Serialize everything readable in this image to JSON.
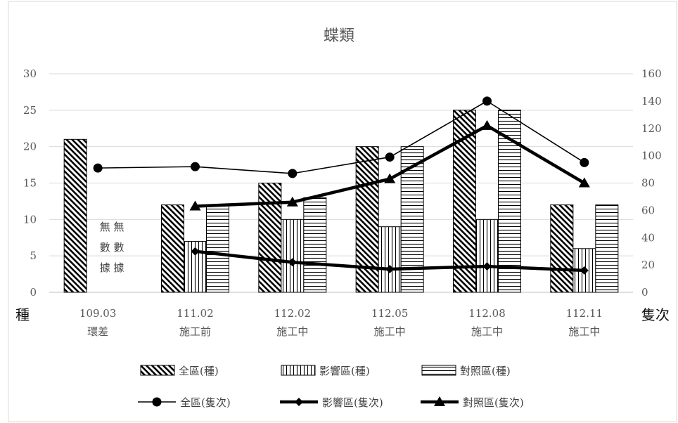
{
  "chart_data": {
    "type": "bar",
    "title": "蝶類",
    "ylabel_left": "種",
    "ylabel_right": "隻次",
    "categories": [
      [
        "109.03",
        "環差"
      ],
      [
        "111.02",
        "施工前"
      ],
      [
        "112.02",
        "施工中"
      ],
      [
        "112.05",
        "施工中"
      ],
      [
        "112.08",
        "施工中"
      ],
      [
        "112.11",
        "施工中"
      ]
    ],
    "yleft": {
      "min": 0,
      "max": 30,
      "ticks": [
        0,
        5,
        10,
        15,
        20,
        25,
        30
      ]
    },
    "yright": {
      "min": 0,
      "max": 160,
      "ticks": [
        0,
        20,
        40,
        60,
        80,
        100,
        120,
        140,
        160
      ]
    },
    "grid": true,
    "legend_position": "bottom",
    "bar_series": [
      {
        "name": "全區(種)",
        "pattern": "diagonal",
        "values": [
          21,
          12,
          15,
          20,
          25,
          12
        ]
      },
      {
        "name": "影響區(種)",
        "pattern": "vertical",
        "values": [
          null,
          7,
          10,
          9,
          10,
          6
        ]
      },
      {
        "name": "對照區(種)",
        "pattern": "horizontal",
        "values": [
          null,
          12,
          13,
          20,
          25,
          12
        ]
      }
    ],
    "line_series": [
      {
        "name": "全區(隻次)",
        "marker": "circle",
        "axis": "right",
        "values": [
          91,
          92,
          87,
          99,
          140,
          95
        ]
      },
      {
        "name": "影響區(隻次)",
        "marker": "diamond",
        "axis": "right",
        "values": [
          null,
          30,
          22,
          17,
          19,
          16
        ]
      },
      {
        "name": "對照區(隻次)",
        "marker": "triangle",
        "axis": "right",
        "values": [
          null,
          63,
          66,
          83,
          122,
          80
        ]
      }
    ],
    "annotation": {
      "lines": [
        "無 無",
        "數 數",
        "據 據"
      ]
    }
  },
  "colors": {
    "ink": "#000000",
    "grid": "#d9d9d9",
    "text": "#595959"
  }
}
